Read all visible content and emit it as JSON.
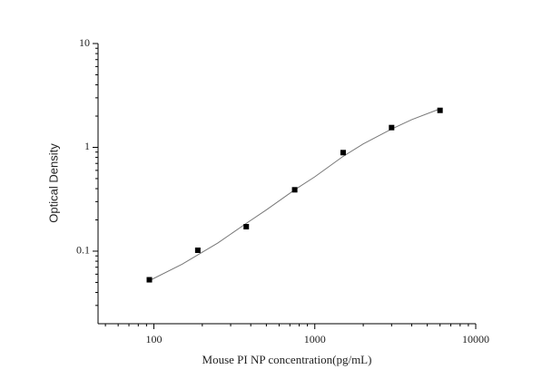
{
  "chart_data": {
    "type": "scatter",
    "xlabel": "Mouse PI  NP concentration(pg/mL)",
    "ylabel": "Optical Density",
    "xscale": "log",
    "yscale": "log",
    "xlim": [
      45,
      10000
    ],
    "ylim": [
      0.02,
      10
    ],
    "xticks": [
      100,
      1000,
      10000
    ],
    "yticks": [
      0.1,
      1,
      10
    ],
    "minor_ticks": true,
    "series": [
      {
        "mode": "markers",
        "color": "#000000",
        "x": [
          93.75,
          187.5,
          375,
          750,
          1500,
          3000,
          6000
        ],
        "values": [
          0.053,
          0.102,
          0.172,
          0.39,
          0.89,
          1.55,
          2.27
        ]
      },
      {
        "mode": "line",
        "color": "#777777",
        "x": [
          93.75,
          150,
          187.5,
          250,
          375,
          500,
          750,
          1000,
          1500,
          2000,
          3000,
          4000,
          6000
        ],
        "values": [
          0.052,
          0.075,
          0.092,
          0.12,
          0.185,
          0.25,
          0.39,
          0.52,
          0.82,
          1.08,
          1.5,
          1.85,
          2.35
        ]
      }
    ]
  }
}
